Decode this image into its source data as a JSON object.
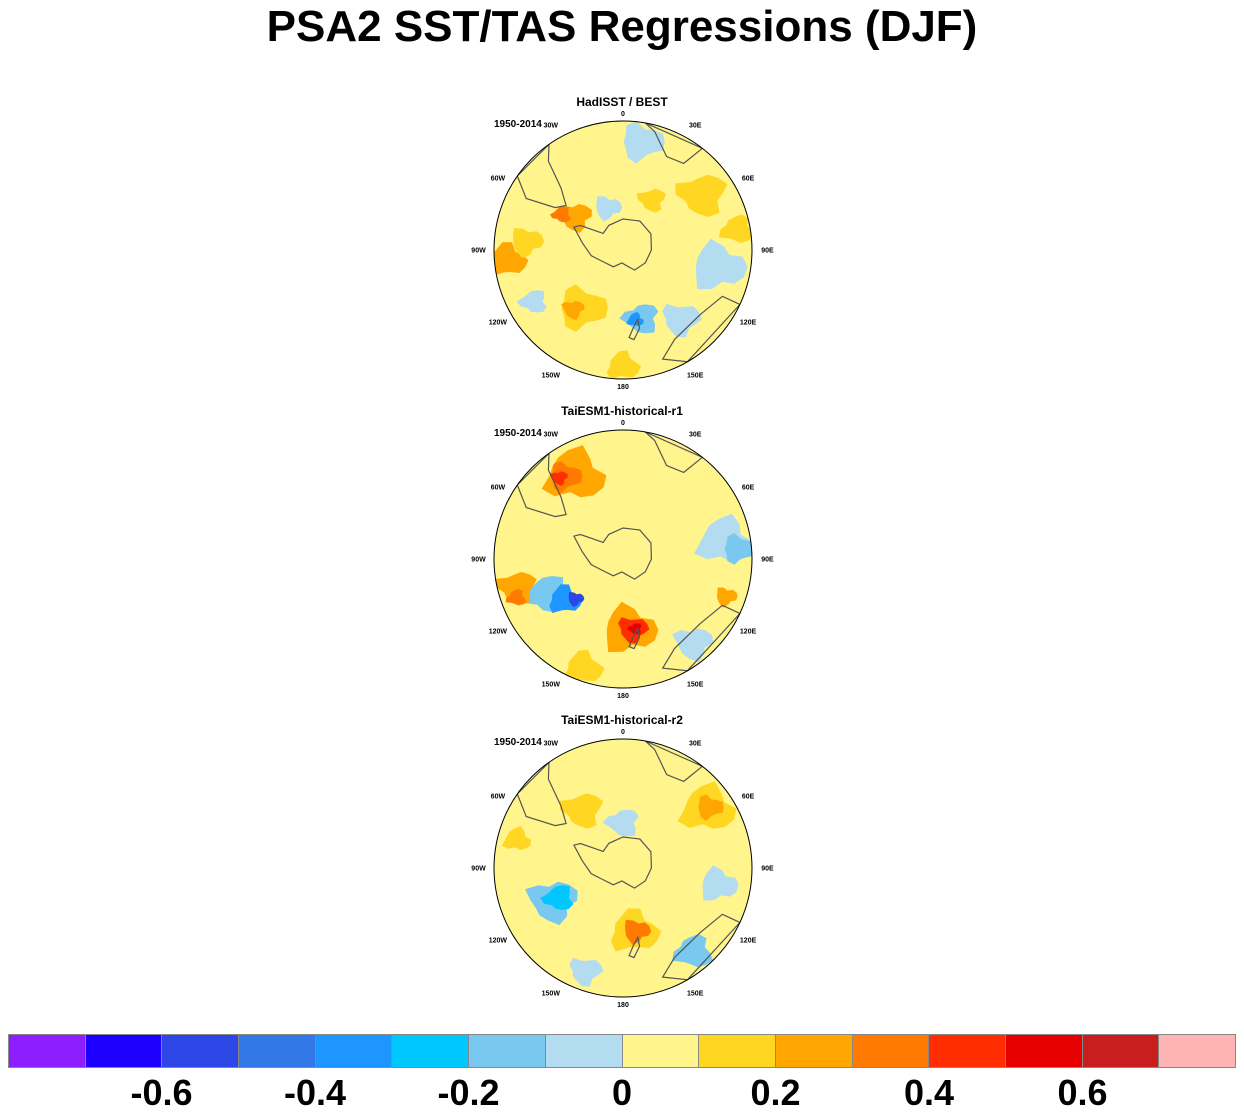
{
  "title": "PSA2 SST/TAS Regressions (DJF)",
  "panels": [
    {
      "title": "HadISST / BEST",
      "period": "1950-2014",
      "blobs": [
        {
          "lon": -20,
          "r": 0.75,
          "size": 0.22,
          "color": "#fff58c"
        },
        {
          "lon": 10,
          "r": 0.85,
          "size": 0.16,
          "color": "#b3dcf0"
        },
        {
          "lon": -55,
          "r": 0.45,
          "size": 0.12,
          "color": "#ffa600"
        },
        {
          "lon": -60,
          "r": 0.55,
          "size": 0.07,
          "color": "#ff7a00"
        },
        {
          "lon": -95,
          "r": 0.9,
          "size": 0.14,
          "color": "#ffa600"
        },
        {
          "lon": -85,
          "r": 0.75,
          "size": 0.12,
          "color": "#ffd621"
        },
        {
          "lon": 55,
          "r": 0.75,
          "size": 0.18,
          "color": "#ffd621"
        },
        {
          "lon": 80,
          "r": 0.9,
          "size": 0.12,
          "color": "#ffd621"
        },
        {
          "lon": 100,
          "r": 0.75,
          "size": 0.2,
          "color": "#b3dcf0"
        },
        {
          "lon": 140,
          "r": 0.7,
          "size": 0.14,
          "color": "#b3dcf0"
        },
        {
          "lon": 165,
          "r": 0.55,
          "size": 0.13,
          "color": "#78c8f0"
        },
        {
          "lon": 170,
          "r": 0.55,
          "size": 0.06,
          "color": "#1e96ff"
        },
        {
          "lon": -145,
          "r": 0.55,
          "size": 0.18,
          "color": "#ffd621"
        },
        {
          "lon": -140,
          "r": 0.6,
          "size": 0.08,
          "color": "#ffa600"
        },
        {
          "lon": -120,
          "r": 0.8,
          "size": 0.1,
          "color": "#b3dcf0"
        },
        {
          "lon": 180,
          "r": 0.9,
          "size": 0.12,
          "color": "#ffd621"
        },
        {
          "lon": -20,
          "r": 0.35,
          "size": 0.1,
          "color": "#b3dcf0"
        },
        {
          "lon": 30,
          "r": 0.45,
          "size": 0.1,
          "color": "#ffd621"
        }
      ]
    },
    {
      "title": "TaiESM1-historical-r1",
      "period": "1950-2014",
      "blobs": [
        {
          "lon": -30,
          "r": 0.75,
          "size": 0.22,
          "color": "#ffa600"
        },
        {
          "lon": -35,
          "r": 0.78,
          "size": 0.12,
          "color": "#ff7a00"
        },
        {
          "lon": -38,
          "r": 0.8,
          "size": 0.06,
          "color": "#ff2d00"
        },
        {
          "lon": -115,
          "r": 0.65,
          "size": 0.16,
          "color": "#78c8f0"
        },
        {
          "lon": -125,
          "r": 0.55,
          "size": 0.12,
          "color": "#1e96ff"
        },
        {
          "lon": -130,
          "r": 0.48,
          "size": 0.06,
          "color": "#2d46e6"
        },
        {
          "lon": -105,
          "r": 0.85,
          "size": 0.14,
          "color": "#ffa600"
        },
        {
          "lon": -110,
          "r": 0.88,
          "size": 0.07,
          "color": "#ff7a00"
        },
        {
          "lon": 175,
          "r": 0.55,
          "size": 0.2,
          "color": "#ffa600"
        },
        {
          "lon": 172,
          "r": 0.55,
          "size": 0.11,
          "color": "#ff2d00"
        },
        {
          "lon": 170,
          "r": 0.55,
          "size": 0.05,
          "color": "#e60000"
        },
        {
          "lon": 80,
          "r": 0.8,
          "size": 0.2,
          "color": "#b3dcf0"
        },
        {
          "lon": 85,
          "r": 0.9,
          "size": 0.12,
          "color": "#78c8f0"
        },
        {
          "lon": 140,
          "r": 0.85,
          "size": 0.14,
          "color": "#b3dcf0"
        },
        {
          "lon": 40,
          "r": 0.55,
          "size": 0.15,
          "color": "#fff58c"
        },
        {
          "lon": -160,
          "r": 0.9,
          "size": 0.14,
          "color": "#ffd621"
        },
        {
          "lon": 110,
          "r": 0.85,
          "size": 0.08,
          "color": "#ffa600"
        }
      ]
    },
    {
      "title": "TaiESM1-historical-r2",
      "period": "1950-2014",
      "blobs": [
        {
          "lon": 55,
          "r": 0.8,
          "size": 0.2,
          "color": "#ffd621"
        },
        {
          "lon": 55,
          "r": 0.82,
          "size": 0.1,
          "color": "#ffa600"
        },
        {
          "lon": -115,
          "r": 0.6,
          "size": 0.18,
          "color": "#78c8f0"
        },
        {
          "lon": -115,
          "r": 0.55,
          "size": 0.11,
          "color": "#00c8ff"
        },
        {
          "lon": 170,
          "r": 0.5,
          "size": 0.18,
          "color": "#ffd621"
        },
        {
          "lon": 168,
          "r": 0.5,
          "size": 0.1,
          "color": "#ff7a00"
        },
        {
          "lon": -35,
          "r": 0.55,
          "size": 0.15,
          "color": "#ffd621"
        },
        {
          "lon": 140,
          "r": 0.85,
          "size": 0.14,
          "color": "#78c8f0"
        },
        {
          "lon": 100,
          "r": 0.75,
          "size": 0.14,
          "color": "#b3dcf0"
        },
        {
          "lon": -160,
          "r": 0.85,
          "size": 0.12,
          "color": "#b3dcf0"
        },
        {
          "lon": 0,
          "r": 0.35,
          "size": 0.12,
          "color": "#b3dcf0"
        },
        {
          "lon": -75,
          "r": 0.85,
          "size": 0.1,
          "color": "#ffd621"
        }
      ]
    }
  ],
  "longitude_labels": [
    "0",
    "30E",
    "60E",
    "90E",
    "120E",
    "150E",
    "180",
    "150W",
    "120W",
    "90W",
    "60W",
    "30W"
  ],
  "colorbar": {
    "colors": [
      "#8c1eff",
      "#1e00ff",
      "#2d46e6",
      "#3278e6",
      "#1e96ff",
      "#00c8ff",
      "#78c8f0",
      "#b3dcf0",
      "#fff58c",
      "#ffd621",
      "#ffa600",
      "#ff7a00",
      "#ff2d00",
      "#e60000",
      "#c81e1e",
      "#ffb4b4"
    ],
    "labels": [
      "-0.6",
      "-0.4",
      "-0.2",
      "0",
      "0.2",
      "0.4",
      "0.6"
    ]
  }
}
